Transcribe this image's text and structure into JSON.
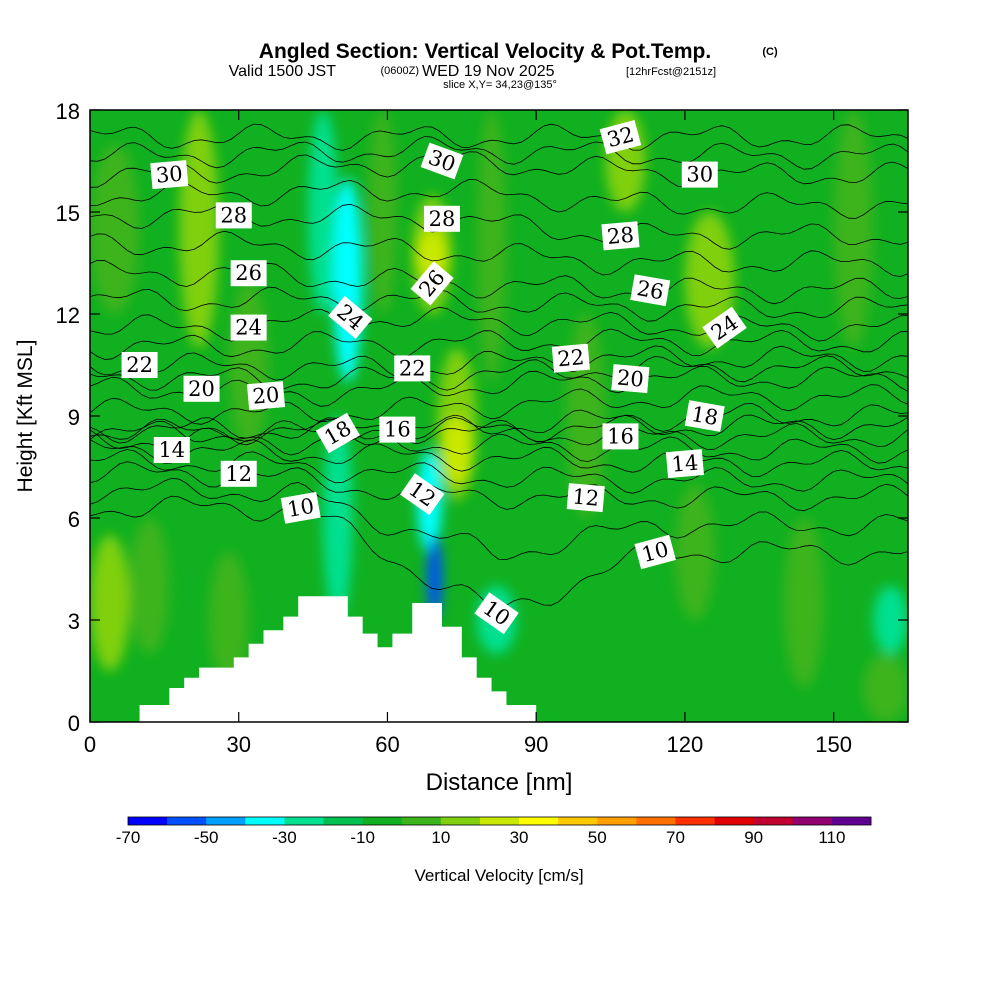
{
  "header": {
    "title": "Angled Section: Vertical Velocity & Pot.Temp.",
    "title_mark": "(C)",
    "valid_prefix": "Valid 1500 JST",
    "valid_utc": "(0600Z)",
    "valid_date": "WED 19 Nov 2025",
    "forecast": "[12hrFcst@2151z]",
    "slice": "slice X,Y= 34,23@135°"
  },
  "colorbar": {
    "label": "Vertical Velocity [cm/s]",
    "tick_labels": [
      "-70",
      "-50",
      "-30",
      "-10",
      "10",
      "30",
      "50",
      "70",
      "90",
      "110"
    ],
    "boundaries": [
      -70,
      -60,
      -50,
      -40,
      -30,
      -20,
      -10,
      0,
      10,
      20,
      30,
      40,
      50,
      60,
      70,
      80,
      90,
      100,
      110
    ],
    "colors": [
      "#0000ff",
      "#0050ff",
      "#00a0ff",
      "#00ffff",
      "#00e090",
      "#00c050",
      "#10b020",
      "#3cb41c",
      "#80d010",
      "#c8e800",
      "#ffff00",
      "#ffc800",
      "#ffa000",
      "#ff7000",
      "#ff3000",
      "#e00000",
      "#c00030",
      "#900070",
      "#600090"
    ]
  },
  "chart_data": {
    "type": "heatmap",
    "title": "Angled Section: Vertical Velocity & Pot.Temp.",
    "xlabel": "Distance [nm]",
    "ylabel": "Height [Kft MSL]",
    "xlim": [
      0,
      165
    ],
    "ylim": [
      0,
      18
    ],
    "x_ticks": [
      0,
      30,
      60,
      90,
      120,
      150
    ],
    "y_ticks": [
      0,
      3,
      6,
      9,
      12,
      15,
      18
    ],
    "shaded_field": "Vertical Velocity [cm/s]",
    "contour_field": "Potential Temperature [C]",
    "contour_interval": 1,
    "background_class": "-10 to 0",
    "regions": [
      {
        "x0": 18,
        "x1": 26,
        "y0": 11,
        "y1": 18,
        "value": 15
      },
      {
        "x0": 28,
        "x1": 36,
        "y0": 8,
        "y1": 13,
        "value": 5
      },
      {
        "x0": 0,
        "x1": 10,
        "y0": 12,
        "y1": 17,
        "value": 5
      },
      {
        "x0": 0,
        "x1": 8,
        "y0": 1.5,
        "y1": 5.5,
        "value": 15
      },
      {
        "x0": 8,
        "x1": 16,
        "y0": 2,
        "y1": 6,
        "value": 5
      },
      {
        "x0": 24,
        "x1": 32,
        "y0": 1,
        "y1": 5,
        "value": 5
      },
      {
        "x0": 44,
        "x1": 50,
        "y0": 12,
        "y1": 18,
        "value": -25
      },
      {
        "x0": 47,
        "x1": 53,
        "y0": 3,
        "y1": 9,
        "value": -25
      },
      {
        "x0": 49,
        "x1": 55,
        "y0": 10,
        "y1": 16,
        "value": -35
      },
      {
        "x0": 56,
        "x1": 62,
        "y0": 12,
        "y1": 18,
        "value": 5
      },
      {
        "x0": 65,
        "x1": 73,
        "y0": 12,
        "y1": 15.5,
        "value": 15
      },
      {
        "x0": 66,
        "x1": 72,
        "y0": 13,
        "y1": 14.5,
        "value": 25
      },
      {
        "x0": 70,
        "x1": 78,
        "y0": 6.5,
        "y1": 11,
        "value": 15
      },
      {
        "x0": 71,
        "x1": 77,
        "y0": 7,
        "y1": 9,
        "value": 25
      },
      {
        "x0": 66,
        "x1": 71,
        "y0": 5,
        "y1": 8,
        "value": -35
      },
      {
        "x0": 68,
        "x1": 71,
        "y0": 3,
        "y1": 5.5,
        "value": -55
      },
      {
        "x0": 78,
        "x1": 86,
        "y0": 2,
        "y1": 4,
        "value": -25
      },
      {
        "x0": 78,
        "x1": 84,
        "y0": 10,
        "y1": 18,
        "value": 5
      },
      {
        "x0": 96,
        "x1": 104,
        "y0": 6,
        "y1": 12,
        "value": 5
      },
      {
        "x0": 104,
        "x1": 112,
        "y0": 15,
        "y1": 18,
        "value": 15
      },
      {
        "x0": 120,
        "x1": 130,
        "y0": 11,
        "y1": 15,
        "value": 15
      },
      {
        "x0": 118,
        "x1": 126,
        "y0": 3,
        "y1": 7,
        "value": 5
      },
      {
        "x0": 140,
        "x1": 148,
        "y0": 1,
        "y1": 6,
        "value": 5
      },
      {
        "x0": 150,
        "x1": 158,
        "y0": 11,
        "y1": 18,
        "value": 5
      },
      {
        "x0": 158,
        "x1": 165,
        "y0": 2,
        "y1": 4,
        "value": -25
      },
      {
        "x0": 156,
        "x1": 165,
        "y0": 0,
        "y1": 2,
        "value": 5
      }
    ],
    "terrain": {
      "x": [
        0,
        10,
        10,
        16,
        16,
        19,
        19,
        22,
        22,
        29,
        29,
        32,
        32,
        35,
        35,
        39,
        39,
        42,
        42,
        52,
        52,
        55,
        55,
        58,
        58,
        61,
        61,
        65,
        65,
        71,
        71,
        75,
        75,
        78,
        78,
        81,
        81,
        84,
        84,
        90,
        90,
        165
      ],
      "y": [
        0,
        0,
        0.5,
        0.5,
        1.0,
        1.0,
        1.3,
        1.3,
        1.6,
        1.6,
        1.9,
        1.9,
        2.3,
        2.3,
        2.7,
        2.7,
        3.1,
        3.1,
        3.7,
        3.7,
        3.1,
        3.1,
        2.6,
        2.6,
        2.2,
        2.2,
        2.6,
        2.6,
        3.5,
        3.5,
        2.8,
        2.8,
        1.9,
        1.9,
        1.3,
        1.3,
        0.9,
        0.9,
        0.5,
        0.5,
        0,
        0
      ]
    },
    "contour_labels": [
      {
        "text": "30",
        "x": 16,
        "y": 16.1,
        "angle": -5
      },
      {
        "text": "28",
        "x": 29,
        "y": 14.9,
        "angle": 0
      },
      {
        "text": "26",
        "x": 32,
        "y": 13.2,
        "angle": 0
      },
      {
        "text": "24",
        "x": 32,
        "y": 11.6,
        "angle": 0
      },
      {
        "text": "22",
        "x": 10,
        "y": 10.5,
        "angle": 0
      },
      {
        "text": "20",
        "x": 22.5,
        "y": 9.8,
        "angle": 0
      },
      {
        "text": "20",
        "x": 35.5,
        "y": 9.6,
        "angle": -5
      },
      {
        "text": "14",
        "x": 16.5,
        "y": 8.0,
        "angle": 0
      },
      {
        "text": "12",
        "x": 30,
        "y": 7.3,
        "angle": 0
      },
      {
        "text": "10",
        "x": 42.5,
        "y": 6.3,
        "angle": -10
      },
      {
        "text": "30",
        "x": 71,
        "y": 16.5,
        "angle": 20
      },
      {
        "text": "28",
        "x": 71,
        "y": 14.8,
        "angle": 0
      },
      {
        "text": "26",
        "x": 69,
        "y": 12.9,
        "angle": -50
      },
      {
        "text": "24",
        "x": 52.5,
        "y": 11.9,
        "angle": 40
      },
      {
        "text": "22",
        "x": 65,
        "y": 10.4,
        "angle": 0
      },
      {
        "text": "18",
        "x": 50,
        "y": 8.5,
        "angle": -30
      },
      {
        "text": "16",
        "x": 62,
        "y": 8.6,
        "angle": 0
      },
      {
        "text": "12",
        "x": 67,
        "y": 6.7,
        "angle": 35
      },
      {
        "text": "10",
        "x": 82,
        "y": 3.2,
        "angle": 35
      },
      {
        "text": "32",
        "x": 107,
        "y": 17.2,
        "angle": -15
      },
      {
        "text": "30",
        "x": 123,
        "y": 16.1,
        "angle": 0
      },
      {
        "text": "28",
        "x": 107,
        "y": 14.3,
        "angle": -5
      },
      {
        "text": "26",
        "x": 113,
        "y": 12.7,
        "angle": 10
      },
      {
        "text": "24",
        "x": 128,
        "y": 11.6,
        "angle": -35
      },
      {
        "text": "22",
        "x": 97,
        "y": 10.7,
        "angle": -5
      },
      {
        "text": "20",
        "x": 109,
        "y": 10.1,
        "angle": 5
      },
      {
        "text": "18",
        "x": 124,
        "y": 9.0,
        "angle": 10
      },
      {
        "text": "16",
        "x": 107,
        "y": 8.4,
        "angle": 0
      },
      {
        "text": "14",
        "x": 120,
        "y": 7.6,
        "angle": -5
      },
      {
        "text": "12",
        "x": 100,
        "y": 6.6,
        "angle": 5
      },
      {
        "text": "10",
        "x": 114,
        "y": 5.0,
        "angle": -15
      }
    ]
  }
}
